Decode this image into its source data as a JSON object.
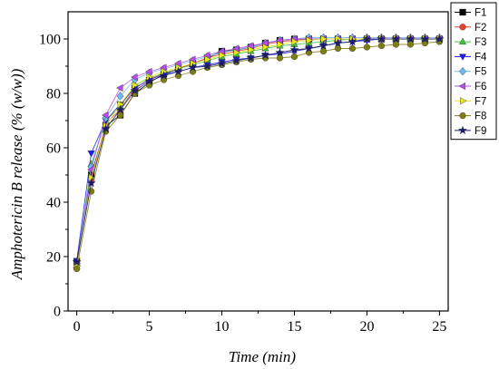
{
  "chart_data": {
    "type": "line",
    "xlabel": "Time (min)",
    "ylabel": "Amphotericin B release (% (w/w))",
    "xlim": [
      -0.6,
      25.6
    ],
    "ylim": [
      0,
      110
    ],
    "x_ticks": [
      0,
      5,
      10,
      15,
      20,
      25
    ],
    "y_ticks": [
      0,
      20,
      40,
      60,
      80,
      100
    ],
    "grid": false,
    "legend_position": "top-right",
    "x": [
      0,
      1,
      2,
      3,
      4,
      5,
      6,
      7,
      8,
      9,
      10,
      11,
      12,
      13,
      14,
      15,
      16,
      17,
      18,
      19,
      20,
      21,
      22,
      23,
      24,
      25
    ],
    "series": [
      {
        "name": "F1",
        "marker": "square",
        "color": "#000000",
        "values": [
          18,
          50,
          68,
          72,
          80,
          84,
          87,
          89,
          91,
          93,
          95.5,
          96,
          97,
          98.5,
          99.5,
          100,
          100,
          100,
          100,
          100,
          100,
          100,
          100,
          100,
          100,
          100
        ]
      },
      {
        "name": "F2",
        "marker": "circle",
        "color": "#e8402a",
        "values": [
          17.5,
          48,
          69,
          74,
          82,
          85,
          87.5,
          89,
          91,
          93,
          94.5,
          95.5,
          96.5,
          98,
          99,
          99.5,
          100,
          100,
          100,
          100,
          100,
          100,
          100,
          100,
          100,
          100
        ]
      },
      {
        "name": "F3",
        "marker": "triangle-up",
        "color": "#3ec83e",
        "values": [
          16.5,
          54,
          70,
          75,
          83,
          85.5,
          87.5,
          89,
          90.5,
          92,
          93.5,
          94.5,
          95.5,
          96.5,
          97.5,
          98,
          98.5,
          99,
          99.5,
          100,
          100,
          100,
          100,
          100,
          100,
          100
        ]
      },
      {
        "name": "F4",
        "marker": "triangle-down",
        "color": "#1c1cf0",
        "values": [
          18.5,
          58,
          70,
          76,
          82,
          85,
          87,
          88,
          89.5,
          90.5,
          91.5,
          92.5,
          93,
          94,
          94.5,
          95.5,
          96.5,
          97.5,
          98.5,
          99,
          99.5,
          100,
          100,
          100,
          100,
          100
        ]
      },
      {
        "name": "F5",
        "marker": "diamond",
        "color": "#6fb8ee",
        "values": [
          17,
          53,
          71,
          79,
          85,
          87.5,
          89,
          90.5,
          92,
          93.5,
          95,
          96,
          97,
          98.5,
          99.5,
          100,
          100.5,
          100.5,
          100.5,
          100.5,
          100.5,
          100.5,
          100.5,
          100.5,
          100.5,
          100.5
        ]
      },
      {
        "name": "F6",
        "marker": "triangle-left",
        "color": "#b24fe6",
        "values": [
          16,
          52,
          72,
          82,
          86,
          88,
          89.5,
          91,
          92.5,
          94,
          95.5,
          96.5,
          97.5,
          98.5,
          99.5,
          100,
          100,
          100,
          100,
          100,
          100,
          100,
          100,
          100,
          100,
          100
        ]
      },
      {
        "name": "F7",
        "marker": "triangle-right",
        "color": "#e6e623",
        "values": [
          16.5,
          49,
          68,
          76,
          83,
          86,
          88,
          89.5,
          91,
          92.5,
          94,
          95,
          96,
          97,
          98,
          99,
          99.5,
          100,
          100,
          100,
          100,
          100,
          100,
          100,
          100,
          100
        ]
      },
      {
        "name": "F8",
        "marker": "circle",
        "color": "#7d7d14",
        "values": [
          15.5,
          44,
          66,
          72,
          80,
          83,
          85,
          86.5,
          88,
          89.5,
          90.5,
          91.5,
          92.5,
          93,
          93,
          93.5,
          95,
          95.5,
          96.5,
          96.5,
          97,
          97.5,
          98,
          98,
          98.5,
          99
        ]
      },
      {
        "name": "F9",
        "marker": "star",
        "color": "#1a1a70",
        "values": [
          18,
          47,
          67,
          74,
          81,
          84.5,
          86.5,
          88,
          89.5,
          90,
          91,
          92,
          93,
          94,
          95,
          96,
          96.5,
          97.5,
          98.5,
          99,
          100,
          100,
          100,
          100,
          100,
          100
        ]
      }
    ]
  }
}
